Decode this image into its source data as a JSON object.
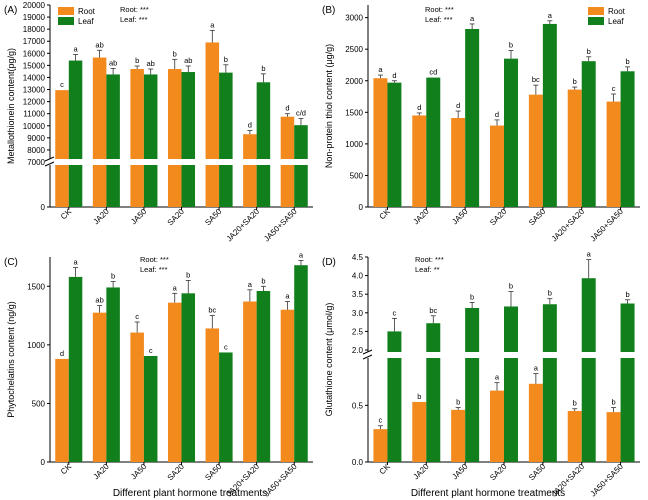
{
  "colors": {
    "root": "#f28a1e",
    "leaf": "#11801c",
    "axis": "#000000"
  },
  "x_axis_title": "Different plant hormone treatments",
  "chart_data": [
    {
      "type": "bar",
      "panel_label": "(A)",
      "ylabel": "Metallothionein content(pg/g)",
      "categories": [
        "CK",
        "JA20",
        "JA50",
        "SA20",
        "SA50",
        "JA20+SA20",
        "JA50+SA50"
      ],
      "ylim": [
        0,
        20000
      ],
      "axis_break": [
        0,
        7000
      ],
      "yticks": [
        0,
        7000,
        8000,
        9000,
        10000,
        11000,
        12000,
        13000,
        14000,
        15000,
        16000,
        17000,
        18000,
        19000,
        20000
      ],
      "stats_lines": [
        "Root: ***",
        "Leaf: ***"
      ],
      "legend": [
        "Root",
        "Leaf"
      ],
      "series": [
        {
          "name": "Root",
          "values": [
            12950,
            15650,
            14700,
            14700,
            16900,
            9300,
            10750
          ],
          "errors": [
            0,
            600,
            250,
            800,
            1000,
            300,
            250
          ],
          "letters": [
            "c",
            "ab",
            "b",
            "b",
            "a",
            "d",
            "d"
          ]
        },
        {
          "name": "Leaf",
          "values": [
            15400,
            14250,
            14250,
            14450,
            14400,
            13600,
            10050
          ],
          "errors": [
            500,
            500,
            450,
            500,
            650,
            700,
            550
          ],
          "letters": [
            "a",
            "ab",
            "ab",
            "ab",
            "b",
            "b",
            "c/d"
          ]
        }
      ]
    },
    {
      "type": "bar",
      "panel_label": "(B)",
      "ylabel": "Non-protein thiol content (μg/g)",
      "categories": [
        "CK",
        "JA20",
        "JA50",
        "SA20",
        "SA50",
        "JA20+SA20",
        "JA50+SA50"
      ],
      "ylim": [
        0,
        3200
      ],
      "yticks": [
        0,
        500,
        1000,
        1500,
        2000,
        2500,
        3000
      ],
      "stats_lines": [
        "Root: ***",
        "Leaf: ***"
      ],
      "legend": [
        "Root",
        "Leaf"
      ],
      "series": [
        {
          "name": "Root",
          "values": [
            2040,
            1450,
            1410,
            1290,
            1780,
            1860,
            1670
          ],
          "errors": [
            50,
            40,
            110,
            90,
            150,
            40,
            120
          ],
          "letters": [
            "a",
            "d",
            "d",
            "d",
            "bc",
            "b",
            "c"
          ]
        },
        {
          "name": "Leaf",
          "values": [
            1970,
            2050,
            2820,
            2350,
            2900,
            2310,
            2150
          ],
          "errors": [
            30,
            0,
            80,
            130,
            50,
            70,
            70
          ],
          "letters": [
            "d",
            "cd",
            "a",
            "b",
            "a",
            "b",
            "b"
          ]
        }
      ]
    },
    {
      "type": "bar",
      "panel_label": "(C)",
      "ylabel": "Phytochelatins content (ng/g)",
      "categories": [
        "CK",
        "JA20",
        "JA50",
        "SA20",
        "SA50",
        "JA20+SA20",
        "JA50+SA50"
      ],
      "ylim": [
        0,
        1750
      ],
      "yticks": [
        0,
        500,
        1000,
        1500
      ],
      "stats_lines": [
        "Root: ***",
        "Leaf: ***"
      ],
      "series": [
        {
          "name": "Root",
          "values": [
            880,
            1275,
            1105,
            1360,
            1140,
            1370,
            1300
          ],
          "errors": [
            0,
            60,
            90,
            80,
            110,
            100,
            70
          ],
          "letters": [
            "d",
            "ab",
            "c",
            "a",
            "bc",
            "a",
            "a"
          ]
        },
        {
          "name": "Leaf",
          "values": [
            1580,
            1490,
            905,
            1440,
            935,
            1460,
            1680
          ],
          "errors": [
            80,
            50,
            0,
            110,
            0,
            40,
            40
          ],
          "letters": [
            "a",
            "b",
            "c",
            "b",
            "c",
            "b",
            "a"
          ]
        }
      ]
    },
    {
      "type": "bar",
      "panel_label": "(D)",
      "ylabel": "Glutathione content (μmol/g)",
      "categories": [
        "CK",
        "JA20",
        "JA50",
        "SA20",
        "SA50",
        "JA20+SA20",
        "JA50+SA50"
      ],
      "ylim": [
        0,
        4.5
      ],
      "axis_break": [
        0.9,
        2.0
      ],
      "yticks": [
        0.0,
        0.5,
        2.0,
        2.5,
        3.0,
        3.5,
        4.0,
        4.5
      ],
      "stats_lines": [
        "Root: ***",
        "Leaf: **"
      ],
      "series": [
        {
          "name": "Root",
          "values": [
            0.29,
            0.53,
            0.46,
            0.63,
            0.69,
            0.45,
            0.44
          ],
          "errors": [
            0.03,
            0.0,
            0.02,
            0.07,
            0.09,
            0.02,
            0.04
          ],
          "letters": [
            "c",
            "b",
            "b",
            "a",
            "a",
            "b",
            "b"
          ]
        },
        {
          "name": "Leaf",
          "values": [
            2.5,
            2.72,
            3.13,
            3.17,
            3.23,
            3.93,
            3.25
          ],
          "errors": [
            0.35,
            0.2,
            0.15,
            0.4,
            0.15,
            0.5,
            0.1
          ],
          "letters": [
            "c",
            "bc",
            "b",
            "b",
            "b",
            "a",
            "b"
          ]
        }
      ]
    }
  ]
}
